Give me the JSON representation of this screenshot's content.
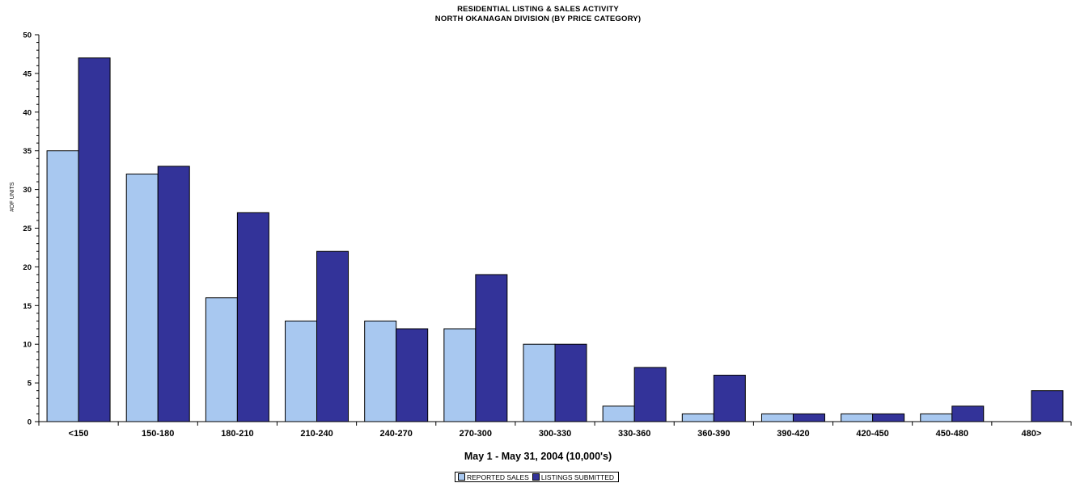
{
  "chart_data": {
    "type": "bar",
    "title": "RESIDENTIAL LISTING & SALES ACTIVITY",
    "subtitle": "NORTH OKANAGAN DIVISION (BY PRICE CATEGORY)",
    "xlabel": "May 1 - May 31, 2004 (10,000's)",
    "ylabel": "#OF UNITS",
    "ylim": [
      0,
      50
    ],
    "yticks": [
      0,
      5,
      10,
      15,
      20,
      25,
      30,
      35,
      40,
      45,
      50
    ],
    "grid": false,
    "legend_position": "bottom-center",
    "categories": [
      "<150",
      "150-180",
      "180-210",
      "210-240",
      "240-270",
      "270-300",
      "300-330",
      "330-360",
      "360-390",
      "390-420",
      "420-450",
      "450-480",
      "480>"
    ],
    "series": [
      {
        "name": "REPORTED SALES",
        "color": "#a8c8f0",
        "values": [
          35,
          32,
          16,
          13,
          13,
          12,
          10,
          2,
          1,
          1,
          1,
          1,
          0
        ]
      },
      {
        "name": "LISTINGS SUBMITTED",
        "color": "#333399",
        "values": [
          47,
          33,
          27,
          22,
          12,
          19,
          10,
          7,
          6,
          1,
          1,
          2,
          4
        ]
      }
    ]
  }
}
